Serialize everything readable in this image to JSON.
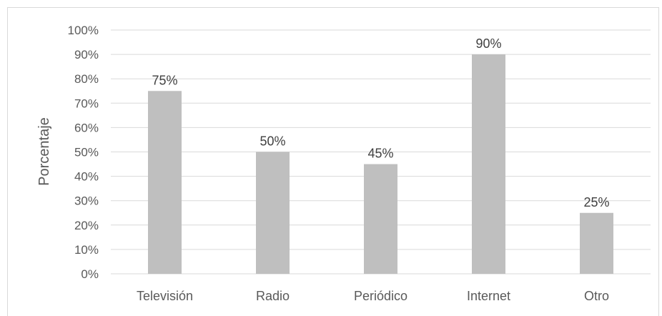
{
  "chart_data": {
    "type": "bar",
    "categories": [
      "Televisión",
      "Radio",
      "Periódico",
      "Internet",
      "Otro"
    ],
    "values": [
      75,
      50,
      45,
      90,
      25
    ],
    "data_labels": [
      "75%",
      "50%",
      "45%",
      "90%",
      "25%"
    ],
    "ylabel": "Porcentaje",
    "xlabel": "",
    "ylim": [
      0,
      100
    ],
    "yticks": [
      0,
      10,
      20,
      30,
      40,
      50,
      60,
      70,
      80,
      90,
      100
    ],
    "ytick_labels": [
      "0%",
      "10%",
      "20%",
      "30%",
      "40%",
      "50%",
      "60%",
      "70%",
      "80%",
      "90%",
      "100%"
    ],
    "grid": true,
    "legend": "none",
    "bar_color": "#bfbfbf",
    "grid_color": "#d9d9d9"
  }
}
